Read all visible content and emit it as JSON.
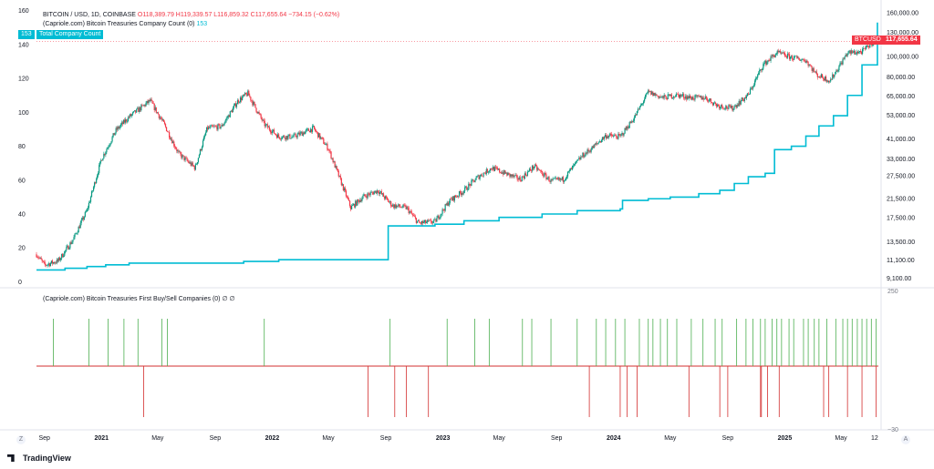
{
  "header": {
    "symbol_line": "BITCOIN / USD, 1D, COINBASE",
    "ohlc": "O118,389.79 H119,339.57 L116,859.32 C117,655.64 −734.15 (−0.62%)",
    "indicator1": "(Capriole.com) Bitcoin Treasuries Company Count (0)",
    "indicator1_value": "153",
    "count_tag_value": "153",
    "count_tag_name": "Total Company Count",
    "indicator2": "(Capriole.com) Bitcoin Treasuries First Buy/Sell Companies (0)",
    "indicator2_values": "∅  ∅"
  },
  "price_tag": {
    "symbol": "BTCUSD",
    "price": "117,655.64"
  },
  "branding": {
    "logo_text": "TradingView"
  },
  "controls": {
    "zoom_left": "Z",
    "zoom_right": "A"
  },
  "colors": {
    "up": "#089981",
    "down": "#f23645",
    "line": "#00bcd4",
    "buy": "#4caf50",
    "sell": "#d32f2f"
  },
  "chart_data": [
    {
      "type": "line",
      "title": "BITCOIN / USD, 1D, COINBASE",
      "series": [
        {
          "name": "BTCUSD",
          "x": [
            "2020-08-15",
            "2020-09-01",
            "2020-10-01",
            "2020-11-01",
            "2020-12-01",
            "2021-01-01",
            "2021-02-01",
            "2021-03-01",
            "2021-04-15",
            "2021-05-15",
            "2021-06-15",
            "2021-07-20",
            "2021-08-15",
            "2021-09-15",
            "2021-10-20",
            "2021-11-10",
            "2021-12-15",
            "2022-01-15",
            "2022-02-15",
            "2022-03-30",
            "2022-05-01",
            "2022-06-18",
            "2022-07-15",
            "2022-08-15",
            "2022-09-15",
            "2022-10-15",
            "2022-11-10",
            "2022-12-15",
            "2023-01-15",
            "2023-02-15",
            "2023-03-15",
            "2023-04-15",
            "2023-06-15",
            "2023-07-15",
            "2023-08-20",
            "2023-09-15",
            "2023-10-25",
            "2023-11-15",
            "2023-12-15",
            "2024-01-15",
            "2024-02-15",
            "2024-03-15",
            "2024-04-15",
            "2024-05-15",
            "2024-06-15",
            "2024-07-15",
            "2024-08-10",
            "2024-09-10",
            "2024-10-15",
            "2024-11-15",
            "2024-12-15",
            "2025-01-15",
            "2025-02-15",
            "2025-03-10",
            "2025-04-08",
            "2025-05-15",
            "2025-06-15",
            "2025-07-14",
            "2025-07-18"
          ],
          "values": [
            11800,
            10500,
            11000,
            13800,
            19000,
            33000,
            45000,
            52000,
            62000,
            48000,
            35000,
            30000,
            46000,
            47000,
            62000,
            67000,
            48000,
            42000,
            42000,
            46000,
            37000,
            19500,
            22000,
            23500,
            20000,
            19500,
            16500,
            16800,
            21000,
            23500,
            27000,
            30000,
            26500,
            30500,
            26000,
            26500,
            34000,
            37000,
            42500,
            42000,
            52000,
            68000,
            64000,
            66000,
            64000,
            64000,
            59000,
            57000,
            66000,
            91000,
            104000,
            99000,
            96000,
            82000,
            77000,
            104000,
            105000,
            120000,
            117655.64
          ]
        }
      ],
      "ylabel": "",
      "y_axis_ticks": [
        "160,000.00",
        "130,000.00",
        "100,000.00",
        "80,000.00",
        "65,000.00",
        "53,000.00",
        "41,000.00",
        "33,000.00",
        "27,500.00",
        "21,500.00",
        "17,500.00",
        "13,500.00",
        "11,100.00",
        "9,100.00"
      ],
      "y_scale": "log",
      "ylim": [
        8300,
        170000
      ]
    },
    {
      "type": "line",
      "title": "(Capriole.com) Bitcoin Treasuries Company Count (0)",
      "series": [
        {
          "name": "Total Company Count",
          "x": [
            "2020-08-15",
            "2020-10-15",
            "2020-12-01",
            "2021-01-10",
            "2021-03-01",
            "2021-05-01",
            "2021-08-01",
            "2021-11-01",
            "2022-01-15",
            "2022-05-01",
            "2022-09-05",
            "2022-09-06",
            "2022-12-15",
            "2023-02-15",
            "2023-05-01",
            "2023-08-01",
            "2023-10-15",
            "2024-01-15",
            "2024-01-20",
            "2024-03-15",
            "2024-05-01",
            "2024-07-01",
            "2024-08-15",
            "2024-09-15",
            "2024-10-15",
            "2024-11-20",
            "2024-12-10",
            "2025-01-15",
            "2025-02-15",
            "2025-03-15",
            "2025-04-15",
            "2025-05-15",
            "2025-06-15",
            "2025-07-18"
          ],
          "values": [
            7,
            8,
            9,
            10,
            11,
            11,
            11,
            12,
            13,
            13,
            13,
            33,
            34,
            36,
            38,
            40,
            42,
            43,
            48,
            49,
            50,
            52,
            54,
            58,
            62,
            64,
            78,
            80,
            86,
            92,
            98,
            110,
            128,
            153
          ]
        }
      ],
      "yticks": [
        0,
        20,
        40,
        60,
        80,
        100,
        120,
        140,
        160
      ],
      "ylim": [
        -3,
        162
      ]
    },
    {
      "type": "bar",
      "title": "(Capriole.com) Bitcoin Treasuries First Buy/Sell Companies (0)",
      "series": [
        {
          "name": "First Buy",
          "x": [
            "2020-09-20",
            "2020-12-05",
            "2021-01-15",
            "2021-02-18",
            "2021-03-20",
            "2021-05-10",
            "2021-05-22",
            "2021-12-15",
            "2022-09-10",
            "2023-01-10",
            "2023-03-10",
            "2023-04-10",
            "2023-06-20",
            "2023-07-10",
            "2023-08-20",
            "2023-10-15",
            "2023-11-25",
            "2023-12-15",
            "2024-01-05",
            "2024-01-25",
            "2024-02-25",
            "2024-03-15",
            "2024-03-25",
            "2024-04-10",
            "2024-04-25",
            "2024-05-15",
            "2024-06-15",
            "2024-07-10",
            "2024-08-05",
            "2024-08-20",
            "2024-09-20",
            "2024-10-10",
            "2024-10-25",
            "2024-11-10",
            "2024-11-20",
            "2024-12-05",
            "2024-12-15",
            "2024-12-25",
            "2025-01-10",
            "2025-01-20",
            "2025-02-10",
            "2025-02-20",
            "2025-03-05",
            "2025-03-15",
            "2025-04-01",
            "2025-04-20",
            "2025-05-05",
            "2025-05-15",
            "2025-05-25",
            "2025-06-05",
            "2025-06-15",
            "2025-06-25",
            "2025-07-05",
            "2025-07-15"
          ],
          "values": [
            1,
            1,
            1,
            1,
            1,
            1,
            1,
            1,
            1,
            1,
            1,
            1,
            1,
            1,
            1,
            1,
            1,
            1,
            1,
            1,
            1,
            1,
            1,
            1,
            1,
            1,
            1,
            1,
            1,
            1,
            1,
            1,
            1,
            1,
            1,
            1,
            1,
            1,
            1,
            1,
            1,
            1,
            1,
            1,
            1,
            1,
            1,
            1,
            1,
            1,
            1,
            1,
            1,
            1
          ]
        },
        {
          "name": "First Sell",
          "x": [
            "2021-04-01",
            "2022-07-25",
            "2022-09-20",
            "2022-10-15",
            "2022-12-01",
            "2023-11-10",
            "2024-01-15",
            "2024-01-30",
            "2024-02-20",
            "2024-06-10",
            "2024-08-15",
            "2024-09-01",
            "2024-11-10",
            "2024-11-12",
            "2024-11-25",
            "2024-12-20",
            "2025-03-25",
            "2025-04-05",
            "2025-05-15",
            "2025-06-15",
            "2025-07-15"
          ],
          "values": [
            -1,
            -1,
            -1,
            -1,
            -1,
            -1,
            -1,
            -1,
            -1,
            -1,
            -1,
            -1,
            -1,
            -1,
            -1,
            -1,
            -1,
            -1,
            -1,
            -1,
            -1
          ]
        }
      ],
      "y_axis_ticks": [
        "250",
        "−30"
      ]
    }
  ],
  "x_axis": {
    "ticks": [
      {
        "label": "Sep",
        "date": "2020-09-01",
        "bold": false
      },
      {
        "label": "2021",
        "date": "2021-01-01",
        "bold": true
      },
      {
        "label": "May",
        "date": "2021-05-01",
        "bold": false
      },
      {
        "label": "Sep",
        "date": "2021-09-01",
        "bold": false
      },
      {
        "label": "2022",
        "date": "2022-01-01",
        "bold": true
      },
      {
        "label": "May",
        "date": "2022-05-01",
        "bold": false
      },
      {
        "label": "Sep",
        "date": "2022-09-01",
        "bold": false
      },
      {
        "label": "2023",
        "date": "2023-01-01",
        "bold": true
      },
      {
        "label": "May",
        "date": "2023-05-01",
        "bold": false
      },
      {
        "label": "Sep",
        "date": "2023-09-01",
        "bold": false
      },
      {
        "label": "2024",
        "date": "2024-01-01",
        "bold": true
      },
      {
        "label": "May",
        "date": "2024-05-01",
        "bold": false
      },
      {
        "label": "Sep",
        "date": "2024-09-01",
        "bold": false
      },
      {
        "label": "2025",
        "date": "2025-01-01",
        "bold": true
      },
      {
        "label": "May",
        "date": "2025-05-01",
        "bold": false
      },
      {
        "label": "12",
        "date": "2025-07-12",
        "bold": false
      }
    ]
  }
}
